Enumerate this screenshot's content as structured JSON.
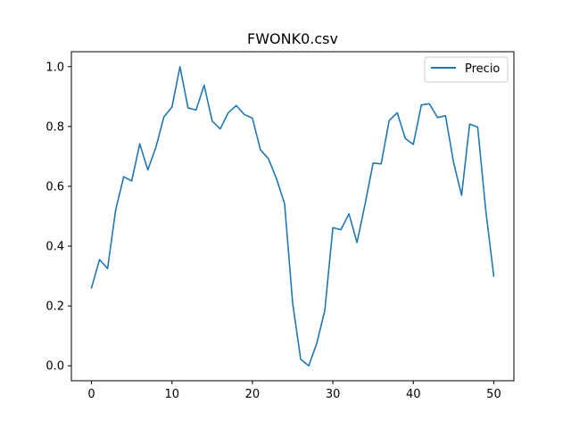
{
  "chart_data": {
    "type": "line",
    "title": "FWONK0.csv",
    "xlabel": "",
    "ylabel": "",
    "xlim": [
      -2.5,
      52.5
    ],
    "ylim": [
      -0.05,
      1.05
    ],
    "xticks": [
      0,
      10,
      20,
      30,
      40,
      50
    ],
    "yticks": [
      0.0,
      0.2,
      0.4,
      0.6,
      0.8,
      1.0
    ],
    "xtick_labels": [
      "0",
      "10",
      "20",
      "30",
      "40",
      "50"
    ],
    "ytick_labels": [
      "0.0",
      "0.2",
      "0.4",
      "0.6",
      "0.8",
      "1.0"
    ],
    "grid": false,
    "legend": {
      "position": "top-right"
    },
    "series": [
      {
        "name": "Precio",
        "color": "#1f77b4",
        "x": [
          0,
          1,
          2,
          3,
          4,
          5,
          6,
          7,
          8,
          9,
          10,
          11,
          12,
          13,
          14,
          15,
          16,
          17,
          18,
          19,
          20,
          21,
          22,
          23,
          24,
          25,
          26,
          27,
          28,
          29,
          30,
          31,
          32,
          33,
          34,
          35,
          36,
          37,
          38,
          39,
          40,
          41,
          42,
          43,
          44,
          45,
          46,
          47,
          48,
          49,
          50
        ],
        "y": [
          0.26,
          0.355,
          0.325,
          0.52,
          0.632,
          0.618,
          0.742,
          0.655,
          0.73,
          0.832,
          0.865,
          1.0,
          0.862,
          0.855,
          0.938,
          0.818,
          0.792,
          0.846,
          0.87,
          0.84,
          0.828,
          0.722,
          0.692,
          0.625,
          0.542,
          0.21,
          0.022,
          0.0,
          0.075,
          0.185,
          0.462,
          0.455,
          0.508,
          0.412,
          0.54,
          0.678,
          0.675,
          0.82,
          0.846,
          0.76,
          0.74,
          0.872,
          0.876,
          0.83,
          0.836,
          0.68,
          0.57,
          0.808,
          0.798,
          0.52,
          0.3
        ]
      }
    ]
  }
}
